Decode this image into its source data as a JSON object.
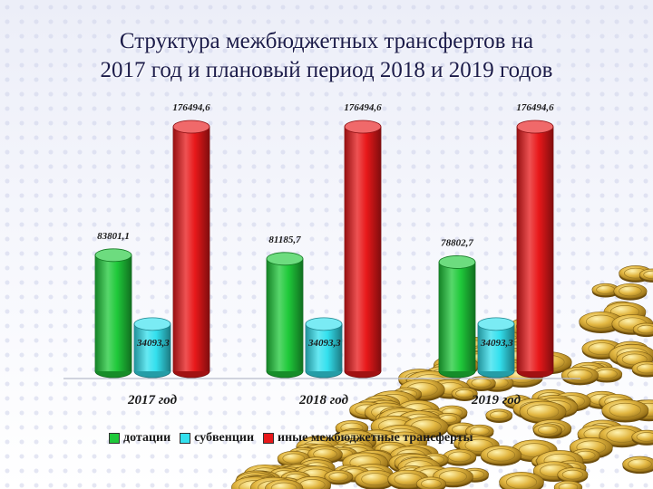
{
  "title": {
    "line1": "Структура межбюджетных трансфертов на",
    "line2": "2017 год и плановый период 2018 и 2019 годов"
  },
  "chart_data": {
    "type": "bar",
    "categories": [
      "2017 год",
      "2018 год",
      "2019 год"
    ],
    "series": [
      {
        "name": "дотации",
        "color": "#1fc93a",
        "values": [
          83801.1,
          81185.7,
          78802.7
        ],
        "labels": [
          "83801,1",
          "81185,7",
          "78802,7"
        ]
      },
      {
        "name": "субвенции",
        "color": "#33e0ee",
        "values": [
          34093.3,
          34093.3,
          34093.3
        ],
        "labels": [
          "34093,3",
          "34093,3",
          "34093,3"
        ]
      },
      {
        "name": "иные межбюджетные трансферты",
        "color": "#e8181a",
        "values": [
          176494.6,
          176494.6,
          176494.6
        ],
        "labels": [
          "176494,6",
          "176494,6",
          "176494,6"
        ]
      }
    ],
    "ylim": [
      0,
      176494.6
    ],
    "grid": false,
    "legend": "bottom"
  }
}
